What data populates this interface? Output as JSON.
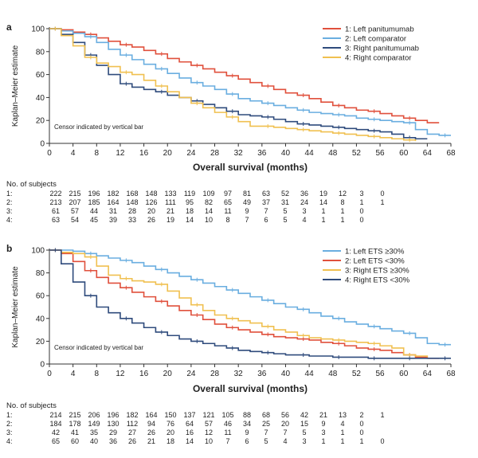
{
  "chart_data": [
    {
      "type": "line",
      "panel_label": "a",
      "ylabel": "Kaplan–Meier estimate",
      "xlabel": "Overall survival (months)",
      "xlim": [
        0,
        68
      ],
      "ylim": [
        0,
        100
      ],
      "xticks": [
        0,
        4,
        8,
        12,
        16,
        20,
        24,
        28,
        32,
        36,
        40,
        44,
        48,
        52,
        56,
        60,
        64,
        68
      ],
      "yticks": [
        0,
        20,
        40,
        60,
        80,
        100
      ],
      "annotation": "Censor indicated by vertical bar",
      "legend_position": "top-right",
      "risk_title": "No. of subjects",
      "series": [
        {
          "name": "1: Left panitumumab",
          "color": "#e0503c",
          "risk": [
            "1:",
            "222",
            "215",
            "196",
            "182",
            "168",
            "148",
            "133",
            "119",
            "109",
            "97",
            "81",
            "63",
            "52",
            "36",
            "19",
            "12",
            "3",
            "0"
          ],
          "x": [
            0,
            2,
            4,
            6,
            8,
            10,
            12,
            14,
            16,
            18,
            20,
            22,
            24,
            26,
            28,
            30,
            32,
            34,
            36,
            38,
            40,
            42,
            44,
            46,
            48,
            50,
            52,
            54,
            56,
            58,
            60,
            62,
            64,
            66
          ],
          "y": [
            100,
            99,
            97,
            95,
            92,
            89,
            86,
            84,
            81,
            78,
            74,
            71,
            68,
            65,
            62,
            59,
            56,
            53,
            50,
            47,
            44,
            42,
            39,
            36,
            33,
            31,
            29,
            28,
            26,
            24,
            22,
            20,
            18,
            18
          ]
        },
        {
          "name": "2: Left comparator",
          "color": "#6aaee0",
          "risk": [
            "2:",
            "213",
            "207",
            "185",
            "164",
            "148",
            "126",
            "111",
            "95",
            "82",
            "65",
            "49",
            "37",
            "31",
            "24",
            "14",
            "8",
            "1",
            "1"
          ],
          "x": [
            0,
            2,
            4,
            6,
            8,
            10,
            12,
            14,
            16,
            18,
            20,
            22,
            24,
            26,
            28,
            30,
            32,
            34,
            36,
            38,
            40,
            42,
            44,
            46,
            48,
            50,
            52,
            54,
            56,
            58,
            60,
            62,
            64,
            66,
            68
          ],
          "y": [
            100,
            98,
            96,
            93,
            88,
            82,
            77,
            73,
            69,
            65,
            61,
            57,
            53,
            50,
            47,
            43,
            39,
            37,
            35,
            33,
            31,
            29,
            27,
            26,
            25,
            24,
            22,
            21,
            20,
            19,
            18,
            12,
            8,
            7,
            7
          ]
        },
        {
          "name": "3: Right panitumumab",
          "color": "#2f4b7c",
          "risk": [
            "3:",
            "61",
            "57",
            "44",
            "31",
            "28",
            "20",
            "21",
            "18",
            "14",
            "11",
            "9",
            "7",
            "5",
            "3",
            "1",
            "1",
            "0",
            ""
          ],
          "x": [
            0,
            2,
            4,
            6,
            8,
            10,
            12,
            14,
            16,
            18,
            20,
            22,
            24,
            26,
            28,
            30,
            32,
            34,
            36,
            38,
            40,
            42,
            44,
            46,
            48,
            50,
            52,
            54,
            56,
            58,
            60,
            62,
            64
          ],
          "y": [
            100,
            95,
            88,
            77,
            68,
            60,
            52,
            49,
            47,
            45,
            42,
            40,
            37,
            34,
            31,
            28,
            25,
            24,
            23,
            21,
            19,
            17,
            16,
            15,
            14,
            13,
            12,
            11,
            10,
            8,
            5,
            4,
            4
          ]
        },
        {
          "name": "4: Right comparator",
          "color": "#f0c050",
          "risk": [
            "4:",
            "63",
            "54",
            "45",
            "39",
            "33",
            "26",
            "19",
            "14",
            "10",
            "8",
            "7",
            "6",
            "5",
            "4",
            "1",
            "1",
            "0",
            ""
          ],
          "x": [
            0,
            2,
            4,
            6,
            8,
            10,
            12,
            14,
            16,
            18,
            20,
            22,
            24,
            26,
            28,
            30,
            32,
            34,
            36,
            38,
            40,
            42,
            44,
            46,
            48,
            50,
            52,
            54,
            56,
            58,
            60,
            62
          ],
          "y": [
            100,
            94,
            85,
            75,
            70,
            67,
            62,
            60,
            55,
            50,
            45,
            40,
            35,
            31,
            27,
            23,
            19,
            15,
            15,
            14,
            13,
            12,
            11,
            10,
            9,
            8,
            7,
            6,
            5,
            4,
            3,
            2
          ]
        }
      ]
    },
    {
      "type": "line",
      "panel_label": "b",
      "ylabel": "Kaplan–Meier estimate",
      "xlabel": "Overall survival (months)",
      "xlim": [
        0,
        68
      ],
      "ylim": [
        0,
        100
      ],
      "xticks": [
        0,
        4,
        8,
        12,
        16,
        20,
        24,
        28,
        32,
        36,
        40,
        44,
        48,
        52,
        56,
        60,
        64,
        68
      ],
      "yticks": [
        0,
        20,
        40,
        60,
        80,
        100
      ],
      "annotation": "Censor indicated by vertical bar",
      "legend_position": "top-right",
      "risk_title": "No. of subjects",
      "series": [
        {
          "name": "1: Left ETS ≥30%",
          "color": "#6aaee0",
          "risk": [
            "1:",
            "214",
            "215",
            "206",
            "196",
            "182",
            "164",
            "150",
            "137",
            "121",
            "105",
            "88",
            "68",
            "56",
            "42",
            "21",
            "13",
            "2",
            "1"
          ],
          "x": [
            0,
            2,
            4,
            6,
            8,
            10,
            12,
            14,
            16,
            18,
            20,
            22,
            24,
            26,
            28,
            30,
            32,
            34,
            36,
            38,
            40,
            42,
            44,
            46,
            48,
            50,
            52,
            54,
            56,
            58,
            60,
            62,
            64,
            66,
            68
          ],
          "y": [
            100,
            100,
            99,
            97,
            95,
            93,
            91,
            89,
            86,
            83,
            80,
            77,
            74,
            71,
            68,
            65,
            62,
            59,
            56,
            53,
            50,
            48,
            45,
            42,
            40,
            37,
            35,
            33,
            31,
            29,
            27,
            23,
            18,
            17,
            17
          ]
        },
        {
          "name": "2: Left ETS <30%",
          "color": "#e0503c",
          "risk": [
            "2:",
            "184",
            "178",
            "149",
            "130",
            "112",
            "94",
            "76",
            "64",
            "57",
            "46",
            "34",
            "25",
            "20",
            "15",
            "9",
            "4",
            "0",
            ""
          ],
          "x": [
            0,
            2,
            4,
            6,
            8,
            10,
            12,
            14,
            16,
            18,
            20,
            22,
            24,
            26,
            28,
            30,
            32,
            34,
            36,
            38,
            40,
            42,
            44,
            46,
            48,
            50,
            52,
            54,
            56,
            58,
            60,
            62,
            64,
            66
          ],
          "y": [
            100,
            97,
            90,
            82,
            76,
            71,
            67,
            63,
            59,
            55,
            51,
            47,
            43,
            39,
            35,
            32,
            30,
            28,
            26,
            24,
            23,
            22,
            21,
            19,
            18,
            16,
            14,
            13,
            12,
            10,
            8,
            6,
            5,
            5
          ]
        },
        {
          "name": "3: Right ETS ≥30%",
          "color": "#f0c050",
          "risk": [
            "3:",
            "42",
            "41",
            "35",
            "29",
            "27",
            "26",
            "20",
            "16",
            "12",
            "11",
            "9",
            "7",
            "7",
            "5",
            "3",
            "1",
            "0",
            ""
          ],
          "x": [
            0,
            2,
            4,
            6,
            8,
            10,
            12,
            14,
            16,
            18,
            20,
            22,
            24,
            26,
            28,
            30,
            32,
            34,
            36,
            38,
            40,
            42,
            44,
            46,
            48,
            50,
            52,
            54,
            56,
            58,
            60,
            62,
            64
          ],
          "y": [
            100,
            98,
            97,
            94,
            86,
            78,
            75,
            73,
            72,
            70,
            64,
            58,
            52,
            47,
            43,
            40,
            38,
            36,
            33,
            30,
            28,
            25,
            23,
            22,
            21,
            20,
            19,
            18,
            16,
            14,
            8,
            7,
            6
          ]
        },
        {
          "name": "4: Right ETS <30%",
          "color": "#2f4b7c",
          "risk": [
            "4:",
            "65",
            "60",
            "40",
            "36",
            "26",
            "21",
            "18",
            "14",
            "10",
            "7",
            "6",
            "5",
            "4",
            "3",
            "1",
            "1",
            "1",
            "0"
          ],
          "x": [
            0,
            2,
            4,
            6,
            8,
            10,
            12,
            14,
            16,
            18,
            20,
            22,
            24,
            26,
            28,
            30,
            32,
            34,
            36,
            38,
            40,
            42,
            44,
            46,
            48,
            50,
            52,
            54,
            56,
            58,
            60,
            62,
            64,
            66,
            68
          ],
          "y": [
            100,
            88,
            72,
            60,
            50,
            45,
            40,
            36,
            32,
            28,
            25,
            22,
            20,
            18,
            16,
            14,
            12,
            11,
            10,
            9,
            8,
            8,
            7,
            7,
            6,
            6,
            6,
            5,
            5,
            5,
            5,
            5,
            5,
            5,
            5
          ]
        }
      ]
    }
  ]
}
